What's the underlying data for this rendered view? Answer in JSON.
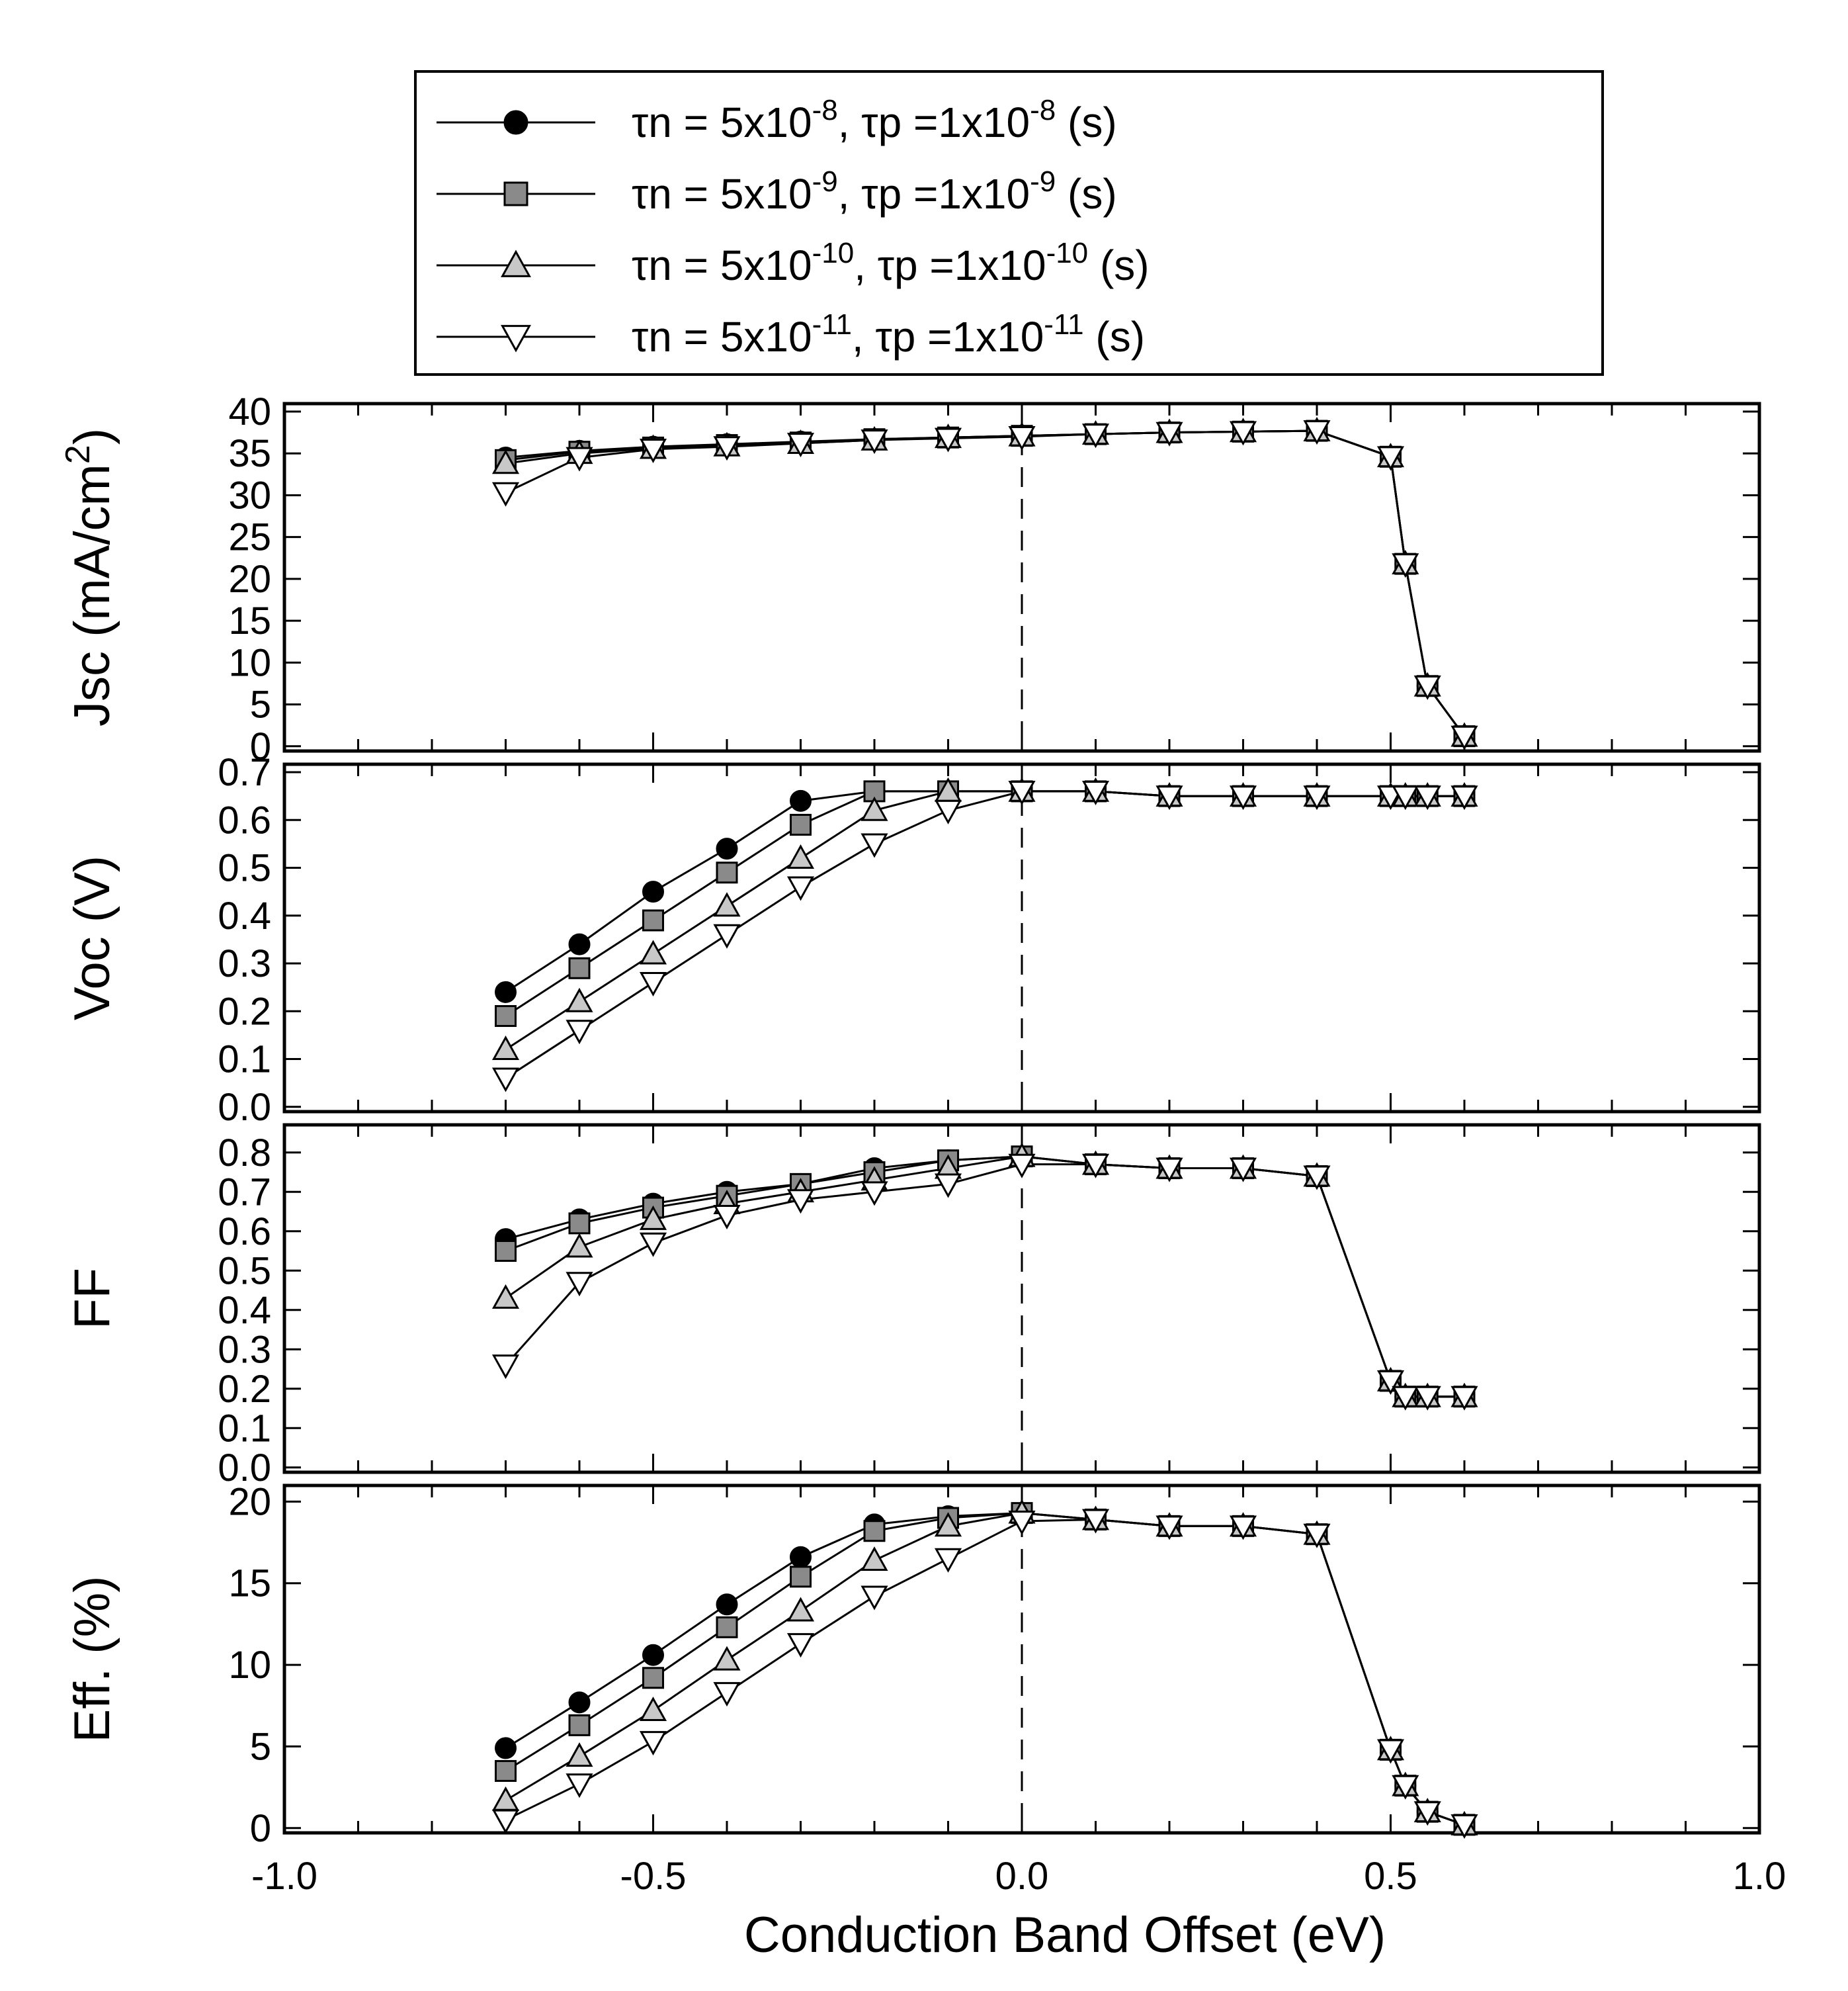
{
  "chart_data": {
    "type": "line",
    "xlabel": "Conduction Band Offset (eV)",
    "xlim": [
      -1.0,
      1.0
    ],
    "xticks": [
      "-1.0",
      "-0.5",
      "0.0",
      "0.5",
      "1.0"
    ],
    "vertical_reference_x": 0.0,
    "legend": [
      {
        "id": "s1",
        "label_prefix": "τn = 5x10",
        "exp1": "-8",
        "label_mid": ",  τp =1x10",
        "exp2": "-8",
        "label_suffix": " (s)",
        "marker": "circle",
        "fill": "#000000"
      },
      {
        "id": "s2",
        "label_prefix": "τn = 5x10",
        "exp1": "-9",
        "label_mid": ",  τp =1x10",
        "exp2": "-9",
        "label_suffix": " (s)",
        "marker": "square",
        "fill": "#8a8a8a"
      },
      {
        "id": "s3",
        "label_prefix": "τn = 5x10",
        "exp1": "-10",
        "label_mid": ",  τp =1x10",
        "exp2": "-10",
        "label_suffix": " (s)",
        "marker": "triangle-up",
        "fill": "#c8c8c8"
      },
      {
        "id": "s4",
        "label_prefix": "τn = 5x10",
        "exp1": "-11",
        "label_mid": ",  τp =1x10",
        "exp2": "-11",
        "label_suffix": " (s)",
        "marker": "triangle-down",
        "fill": "#ffffff"
      }
    ],
    "panels": [
      {
        "id": "jsc",
        "ylabel_main": "Jsc (mA/cm",
        "ylabel_sup": "2",
        "ylabel_end": ")",
        "ylim": [
          0,
          40
        ],
        "yticks": [
          "0",
          "5",
          "10",
          "15",
          "20",
          "25",
          "30",
          "35",
          "40"
        ],
        "yticks_values": [
          0,
          5,
          10,
          15,
          20,
          25,
          30,
          35,
          40
        ],
        "series": [
          {
            "x": [
              -0.7,
              -0.6,
              -0.5,
              -0.4,
              -0.3,
              -0.2,
              -0.1,
              0.0,
              0.1,
              0.2,
              0.3,
              0.4,
              0.5,
              0.52,
              0.55,
              0.6
            ],
            "y": [
              34.5,
              35.3,
              35.8,
              36.1,
              36.4,
              36.7,
              36.9,
              37.1,
              37.3,
              37.5,
              37.6,
              37.7,
              34.6,
              21.8,
              7.2,
              1.2
            ]
          },
          {
            "x": [
              -0.7,
              -0.6,
              -0.5,
              -0.4,
              -0.3,
              -0.2,
              -0.1,
              0.0,
              0.1,
              0.2,
              0.3,
              0.4,
              0.5,
              0.52,
              0.55,
              0.6
            ],
            "y": [
              34.2,
              35.2,
              35.7,
              36.0,
              36.3,
              36.7,
              36.9,
              37.1,
              37.3,
              37.5,
              37.6,
              37.7,
              34.6,
              21.8,
              7.2,
              1.2
            ]
          },
          {
            "x": [
              -0.7,
              -0.6,
              -0.5,
              -0.4,
              -0.3,
              -0.2,
              -0.1,
              0.0,
              0.1,
              0.2,
              0.3,
              0.4,
              0.5,
              0.52,
              0.55,
              0.6
            ],
            "y": [
              33.8,
              35.0,
              35.6,
              35.9,
              36.2,
              36.6,
              36.9,
              37.1,
              37.3,
              37.5,
              37.6,
              37.7,
              34.6,
              21.8,
              7.2,
              1.2
            ]
          },
          {
            "x": [
              -0.7,
              -0.6,
              -0.5,
              -0.4,
              -0.3,
              -0.2,
              -0.1,
              0.0,
              0.1,
              0.2,
              0.3,
              0.4,
              0.5,
              0.52,
              0.55,
              0.6
            ],
            "y": [
              30.3,
              34.5,
              35.5,
              35.8,
              36.2,
              36.6,
              36.8,
              37.0,
              37.3,
              37.5,
              37.6,
              37.7,
              34.6,
              21.8,
              7.2,
              1.2
            ]
          }
        ]
      },
      {
        "id": "voc",
        "ylabel_main": "Voc (V)",
        "ylabel_sup": "",
        "ylabel_end": "",
        "ylim": [
          0,
          0.7
        ],
        "yticks": [
          "0.0",
          "0.1",
          "0.2",
          "0.3",
          "0.4",
          "0.5",
          "0.6",
          "0.7"
        ],
        "yticks_values": [
          0,
          0.1,
          0.2,
          0.3,
          0.4,
          0.5,
          0.6,
          0.7
        ],
        "series": [
          {
            "x": [
              -0.7,
              -0.6,
              -0.5,
              -0.4,
              -0.3,
              -0.2,
              -0.1,
              0.0,
              0.1,
              0.2,
              0.3,
              0.4,
              0.5,
              0.52,
              0.55,
              0.6
            ],
            "y": [
              0.24,
              0.34,
              0.45,
              0.54,
              0.64,
              0.66,
              0.66,
              0.66,
              0.66,
              0.65,
              0.65,
              0.65,
              0.65,
              0.65,
              0.65,
              0.65
            ]
          },
          {
            "x": [
              -0.7,
              -0.6,
              -0.5,
              -0.4,
              -0.3,
              -0.2,
              -0.1,
              0.0,
              0.1,
              0.2,
              0.3,
              0.4,
              0.5,
              0.52,
              0.55,
              0.6
            ],
            "y": [
              0.19,
              0.29,
              0.39,
              0.49,
              0.59,
              0.66,
              0.66,
              0.66,
              0.66,
              0.65,
              0.65,
              0.65,
              0.65,
              0.65,
              0.65,
              0.65
            ]
          },
          {
            "x": [
              -0.7,
              -0.6,
              -0.5,
              -0.4,
              -0.3,
              -0.2,
              -0.1,
              0.0,
              0.1,
              0.2,
              0.3,
              0.4,
              0.5,
              0.52,
              0.55,
              0.6
            ],
            "y": [
              0.12,
              0.22,
              0.32,
              0.42,
              0.52,
              0.62,
              0.66,
              0.66,
              0.66,
              0.65,
              0.65,
              0.65,
              0.65,
              0.65,
              0.65,
              0.65
            ]
          },
          {
            "x": [
              -0.7,
              -0.6,
              -0.5,
              -0.4,
              -0.3,
              -0.2,
              -0.1,
              0.0,
              0.1,
              0.2,
              0.3,
              0.4,
              0.5,
              0.52,
              0.55,
              0.6
            ],
            "y": [
              0.06,
              0.16,
              0.26,
              0.36,
              0.46,
              0.55,
              0.62,
              0.66,
              0.66,
              0.65,
              0.65,
              0.65,
              0.65,
              0.65,
              0.65,
              0.65
            ]
          }
        ]
      },
      {
        "id": "ff",
        "ylabel_main": "FF",
        "ylabel_sup": "",
        "ylabel_end": "",
        "ylim": [
          0,
          0.85
        ],
        "yticks": [
          "0.0",
          "0.1",
          "0.2",
          "0.3",
          "0.4",
          "0.5",
          "0.6",
          "0.7",
          "0.8"
        ],
        "yticks_values": [
          0,
          0.1,
          0.2,
          0.3,
          0.4,
          0.5,
          0.6,
          0.7,
          0.8
        ],
        "series": [
          {
            "x": [
              -0.7,
              -0.6,
              -0.5,
              -0.4,
              -0.3,
              -0.2,
              -0.1,
              0.0,
              0.1,
              0.2,
              0.3,
              0.4,
              0.5,
              0.52,
              0.55,
              0.6
            ],
            "y": [
              0.58,
              0.63,
              0.67,
              0.7,
              0.72,
              0.76,
              0.78,
              0.79,
              0.77,
              0.76,
              0.76,
              0.74,
              0.22,
              0.18,
              0.18,
              0.18
            ]
          },
          {
            "x": [
              -0.7,
              -0.6,
              -0.5,
              -0.4,
              -0.3,
              -0.2,
              -0.1,
              0.0,
              0.1,
              0.2,
              0.3,
              0.4,
              0.5,
              0.52,
              0.55,
              0.6
            ],
            "y": [
              0.55,
              0.62,
              0.66,
              0.69,
              0.72,
              0.75,
              0.78,
              0.79,
              0.77,
              0.76,
              0.76,
              0.74,
              0.22,
              0.18,
              0.18,
              0.18
            ]
          },
          {
            "x": [
              -0.7,
              -0.6,
              -0.5,
              -0.4,
              -0.3,
              -0.2,
              -0.1,
              0.0,
              0.1,
              0.2,
              0.3,
              0.4,
              0.5,
              0.52,
              0.55,
              0.6
            ],
            "y": [
              0.43,
              0.56,
              0.63,
              0.67,
              0.7,
              0.73,
              0.76,
              0.79,
              0.77,
              0.76,
              0.76,
              0.74,
              0.22,
              0.18,
              0.18,
              0.18
            ]
          },
          {
            "x": [
              -0.7,
              -0.6,
              -0.5,
              -0.4,
              -0.3,
              -0.2,
              -0.1,
              0.0,
              0.1,
              0.2,
              0.3,
              0.4,
              0.5,
              0.52,
              0.55,
              0.6
            ],
            "y": [
              0.26,
              0.47,
              0.57,
              0.64,
              0.68,
              0.7,
              0.72,
              0.77,
              0.77,
              0.76,
              0.76,
              0.74,
              0.22,
              0.18,
              0.18,
              0.18
            ]
          }
        ]
      },
      {
        "id": "eff",
        "ylabel_main": "Eff. (%)",
        "ylabel_sup": "",
        "ylabel_end": "",
        "ylim": [
          0,
          20.5
        ],
        "yticks": [
          "0",
          "5",
          "10",
          "15",
          "20"
        ],
        "yticks_values": [
          0,
          5,
          10,
          15,
          20
        ],
        "series": [
          {
            "x": [
              -0.7,
              -0.6,
              -0.5,
              -0.4,
              -0.3,
              -0.2,
              -0.1,
              0.0,
              0.1,
              0.2,
              0.3,
              0.4,
              0.5,
              0.52,
              0.55,
              0.6
            ],
            "y": [
              4.9,
              7.7,
              10.6,
              13.7,
              16.6,
              18.6,
              19.1,
              19.3,
              18.9,
              18.5,
              18.5,
              18.0,
              4.8,
              2.6,
              1.0,
              0.2
            ]
          },
          {
            "x": [
              -0.7,
              -0.6,
              -0.5,
              -0.4,
              -0.3,
              -0.2,
              -0.1,
              0.0,
              0.1,
              0.2,
              0.3,
              0.4,
              0.5,
              0.52,
              0.55,
              0.6
            ],
            "y": [
              3.5,
              6.3,
              9.2,
              12.3,
              15.4,
              18.2,
              19.0,
              19.3,
              18.9,
              18.5,
              18.5,
              18.0,
              4.8,
              2.6,
              1.0,
              0.2
            ]
          },
          {
            "x": [
              -0.7,
              -0.6,
              -0.5,
              -0.4,
              -0.3,
              -0.2,
              -0.1,
              0.0,
              0.1,
              0.2,
              0.3,
              0.4,
              0.5,
              0.52,
              0.55,
              0.6
            ],
            "y": [
              1.7,
              4.4,
              7.2,
              10.3,
              13.3,
              16.4,
              18.5,
              19.3,
              18.9,
              18.5,
              18.5,
              18.0,
              4.8,
              2.6,
              1.0,
              0.2
            ]
          },
          {
            "x": [
              -0.7,
              -0.6,
              -0.5,
              -0.4,
              -0.3,
              -0.2,
              -0.1,
              0.0,
              0.1,
              0.2,
              0.3,
              0.4,
              0.5,
              0.52,
              0.55,
              0.6
            ],
            "y": [
              0.5,
              2.7,
              5.3,
              8.3,
              11.3,
              14.2,
              16.5,
              18.8,
              18.9,
              18.5,
              18.5,
              18.0,
              4.8,
              2.6,
              1.0,
              0.2
            ]
          }
        ]
      }
    ]
  }
}
